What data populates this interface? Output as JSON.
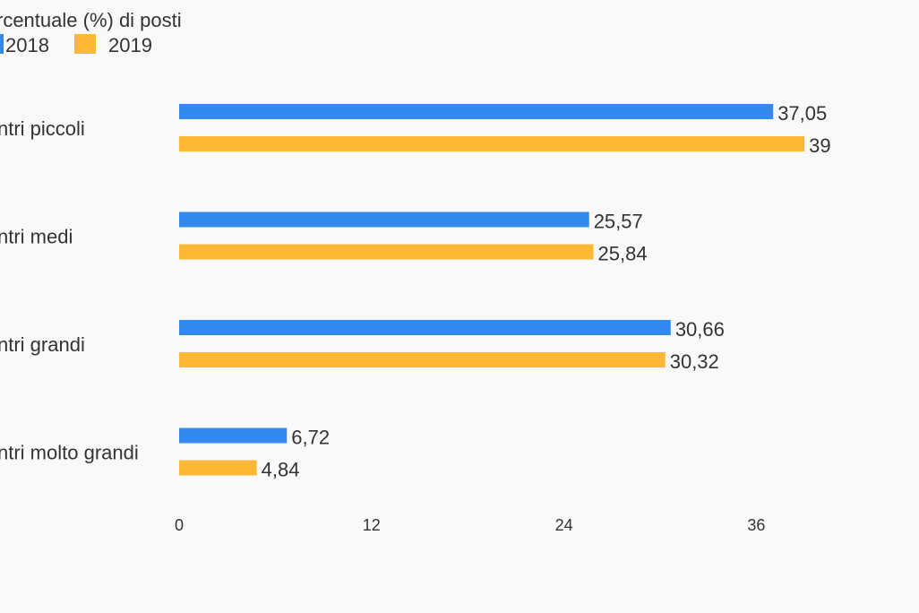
{
  "chart_data": {
    "type": "bar",
    "orientation": "horizontal",
    "title": "rcentuale (%) di posti",
    "categories": [
      "ntri piccoli",
      "ntri medi",
      "ntri grandi",
      "ntri molto grandi"
    ],
    "series": [
      {
        "name": "2018",
        "color": "#3389ee",
        "values": [
          37.05,
          25.57,
          30.66,
          6.72
        ],
        "labels": [
          "37,05",
          "25,57",
          "30,66",
          "6,72"
        ]
      },
      {
        "name": "2019",
        "color": "#fdb935",
        "values": [
          39,
          25.84,
          30.32,
          4.84
        ],
        "labels": [
          "39",
          "25,84",
          "30,32",
          "4,84"
        ]
      }
    ],
    "xticks": [
      "0",
      "12",
      "24",
      "36"
    ],
    "xlim": [
      0,
      48
    ],
    "grid": false,
    "legend_position": "top-left"
  }
}
